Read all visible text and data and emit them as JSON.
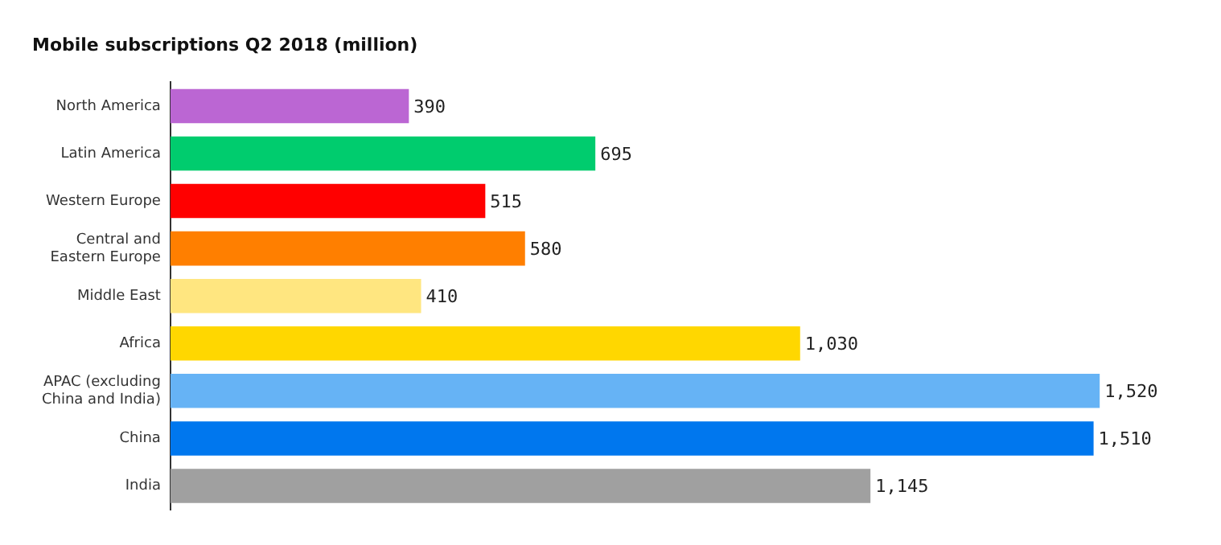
{
  "chart_data": {
    "type": "bar",
    "orientation": "horizontal",
    "title": "Mobile subscriptions Q2 2018 (million)",
    "categories": [
      "North America",
      "Latin America",
      "Western Europe",
      "Central and Eastern Europe",
      "Middle East",
      "Africa",
      "APAC (excluding China and India)",
      "China",
      "India"
    ],
    "values": [
      390,
      695,
      515,
      580,
      410,
      1030,
      1520,
      1510,
      1145
    ],
    "colors": [
      "#bb66d3",
      "#00cc6e",
      "#ff0000",
      "#ff7f00",
      "#ffe680",
      "#ffd700",
      "#66b3f5",
      "#0077ee",
      "#a0a0a0"
    ],
    "value_labels": [
      "390",
      "695",
      "515",
      "580",
      "410",
      "1,030",
      "1,520",
      "1,510",
      "1,145"
    ],
    "legend": false
  }
}
